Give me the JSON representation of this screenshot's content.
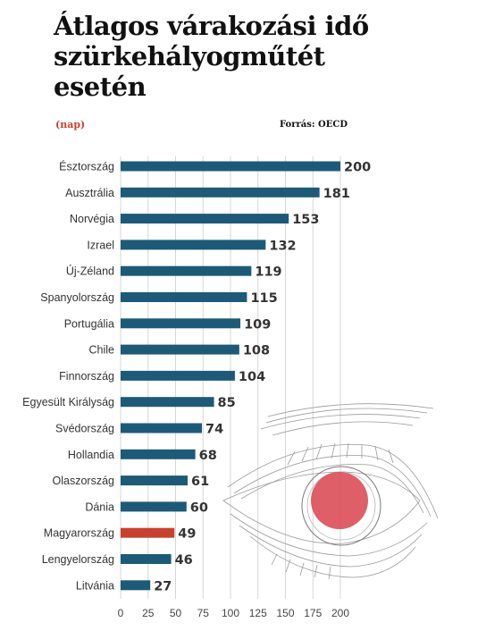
{
  "title": "Átlagos várakozási idő szürkehályogműtét esetén",
  "unit_label": "(nap)",
  "source": "Forrás: OECD",
  "colors": {
    "bar": "#1d5a78",
    "highlight": "#c8412e",
    "grid": "#d6d6d6",
    "pupil": "#d9434f"
  },
  "illustration": "eye-sketch",
  "chart_data": {
    "type": "bar",
    "orientation": "horizontal",
    "categories": [
      "Észtország",
      "Ausztrália",
      "Norvégia",
      "Izrael",
      "Új-Zéland",
      "Spanyolország",
      "Portugália",
      "Chile",
      "Finnország",
      "Egyesült Királyság",
      "Svédország",
      "Hollandia",
      "Olaszország",
      "Dánia",
      "Magyarország",
      "Lengyelország",
      "Litvánia"
    ],
    "values": [
      200,
      181,
      153,
      132,
      119,
      115,
      109,
      108,
      104,
      85,
      74,
      68,
      61,
      60,
      49,
      46,
      27
    ],
    "highlight": "Magyarország",
    "xlim": [
      0,
      200
    ],
    "xticks": [
      0,
      25,
      50,
      75,
      100,
      125,
      150,
      175,
      200
    ],
    "grid": true
  }
}
